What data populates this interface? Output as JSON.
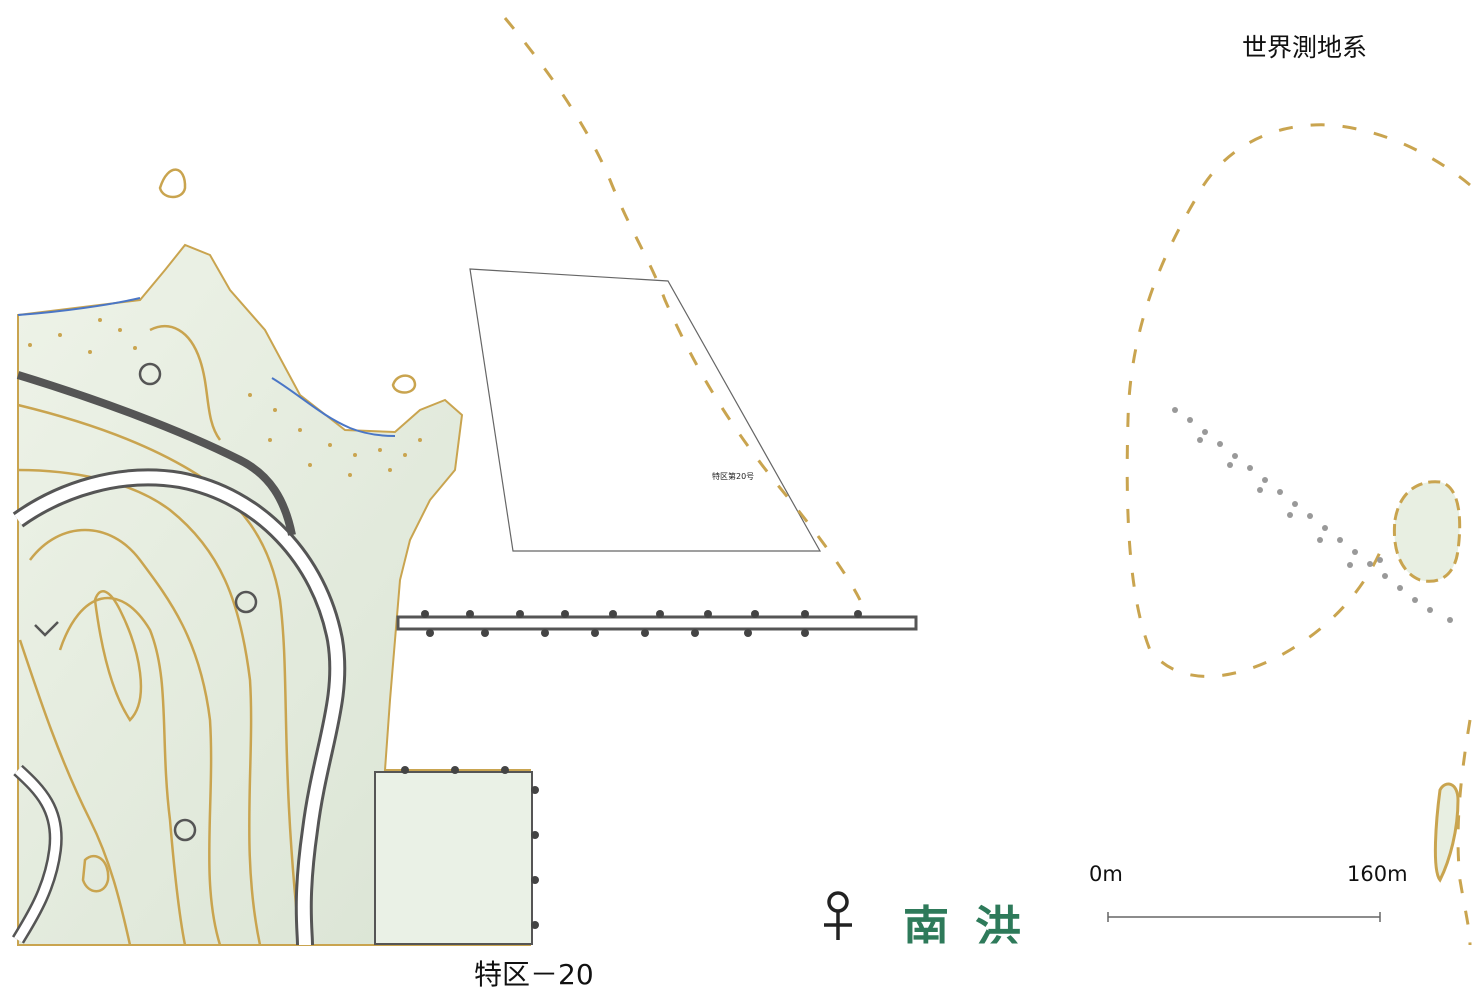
{
  "map": {
    "datum_label": "世界測地系",
    "sheet_label": "特区－20",
    "parcel_label": "特区第20号",
    "park_text": "南洪",
    "scale_bar": {
      "start_label": "0m",
      "end_label": "160m",
      "length_m": 160
    },
    "colors": {
      "contour": "#c9a44f",
      "shoreline": "#4a76c6",
      "terrain_fill": "#e8efe2",
      "road_dark": "#555555",
      "symbol_green": "#2e7a5a"
    },
    "symbols": [
      "contour-lines",
      "sand-dots",
      "shoreline",
      "road",
      "pier",
      "parcel-boundary",
      "shrine-symbol",
      "building-block"
    ]
  }
}
